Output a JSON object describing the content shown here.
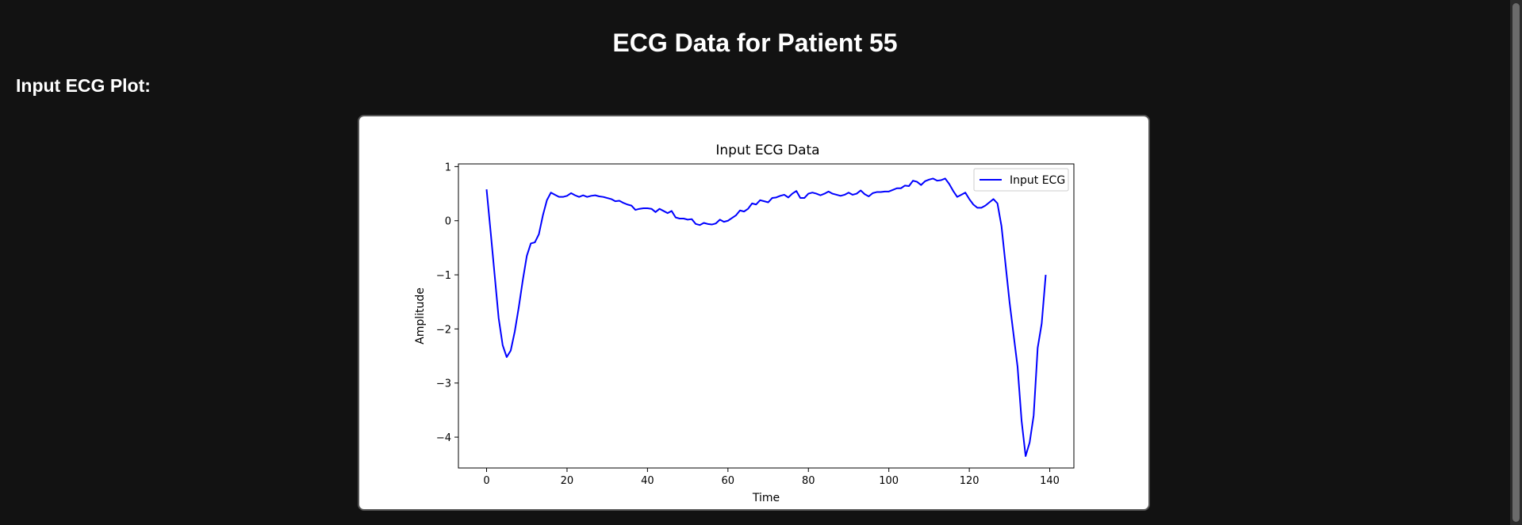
{
  "page": {
    "title": "ECG Data for Patient 55",
    "section_heading": "Input ECG Plot:"
  },
  "colors": {
    "background": "#121212",
    "line": "#0000ff"
  },
  "chart_data": {
    "type": "line",
    "title": "Input ECG Data",
    "xlabel": "Time",
    "ylabel": "Amplitude",
    "xlim": [
      -7,
      146
    ],
    "ylim": [
      -4.57,
      1.05
    ],
    "xticks": [
      0,
      20,
      40,
      60,
      80,
      100,
      120,
      140
    ],
    "yticks": [
      1,
      0,
      -1,
      -2,
      -3,
      -4
    ],
    "grid": false,
    "legend": {
      "position": "top-right",
      "entries": [
        "Input ECG"
      ]
    },
    "series": [
      {
        "name": "Input ECG",
        "color": "#0000ff",
        "x": [
          0,
          1,
          2,
          3,
          4,
          5,
          6,
          7,
          8,
          9,
          10,
          11,
          12,
          13,
          14,
          15,
          16,
          17,
          18,
          19,
          20,
          21,
          22,
          23,
          24,
          25,
          26,
          27,
          28,
          29,
          30,
          31,
          32,
          33,
          34,
          35,
          36,
          37,
          38,
          39,
          40,
          41,
          42,
          43,
          44,
          45,
          46,
          47,
          48,
          49,
          50,
          51,
          52,
          53,
          54,
          55,
          56,
          57,
          58,
          59,
          60,
          61,
          62,
          63,
          64,
          65,
          66,
          67,
          68,
          69,
          70,
          71,
          72,
          73,
          74,
          75,
          76,
          77,
          78,
          79,
          80,
          81,
          82,
          83,
          84,
          85,
          86,
          87,
          88,
          89,
          90,
          91,
          92,
          93,
          94,
          95,
          96,
          97,
          98,
          99,
          100,
          101,
          102,
          103,
          104,
          105,
          106,
          107,
          108,
          109,
          110,
          111,
          112,
          113,
          114,
          115,
          116,
          117,
          118,
          119,
          120,
          121,
          122,
          123,
          124,
          125,
          126,
          127,
          128,
          129,
          130,
          131,
          132,
          133,
          134,
          135,
          136,
          137,
          138,
          139
        ],
        "values": [
          0.58,
          -0.2,
          -1.0,
          -1.8,
          -2.3,
          -2.52,
          -2.4,
          -2.05,
          -1.6,
          -1.1,
          -0.65,
          -0.42,
          -0.4,
          -0.25,
          0.1,
          0.38,
          0.52,
          0.48,
          0.44,
          0.44,
          0.46,
          0.51,
          0.47,
          0.44,
          0.47,
          0.44,
          0.46,
          0.47,
          0.45,
          0.44,
          0.42,
          0.4,
          0.36,
          0.37,
          0.33,
          0.3,
          0.28,
          0.2,
          0.22,
          0.23,
          0.23,
          0.22,
          0.16,
          0.22,
          0.18,
          0.14,
          0.18,
          0.06,
          0.04,
          0.04,
          0.02,
          0.03,
          -0.06,
          -0.08,
          -0.04,
          -0.06,
          -0.07,
          -0.05,
          0.02,
          -0.02,
          0.0,
          0.05,
          0.1,
          0.19,
          0.17,
          0.22,
          0.32,
          0.3,
          0.38,
          0.36,
          0.34,
          0.42,
          0.43,
          0.46,
          0.48,
          0.43,
          0.5,
          0.55,
          0.42,
          0.42,
          0.5,
          0.52,
          0.5,
          0.47,
          0.5,
          0.54,
          0.5,
          0.48,
          0.46,
          0.48,
          0.52,
          0.48,
          0.5,
          0.56,
          0.49,
          0.45,
          0.51,
          0.53,
          0.53,
          0.54,
          0.54,
          0.57,
          0.6,
          0.6,
          0.65,
          0.64,
          0.74,
          0.72,
          0.66,
          0.73,
          0.76,
          0.78,
          0.74,
          0.75,
          0.78,
          0.68,
          0.55,
          0.44,
          0.48,
          0.52,
          0.4,
          0.3,
          0.24,
          0.24,
          0.28,
          0.34,
          0.4,
          0.32,
          -0.1,
          -0.8,
          -1.5,
          -2.1,
          -2.7,
          -3.7,
          -4.35,
          -4.1,
          -3.6,
          -2.35,
          -1.9,
          -1.0
        ]
      }
    ]
  }
}
